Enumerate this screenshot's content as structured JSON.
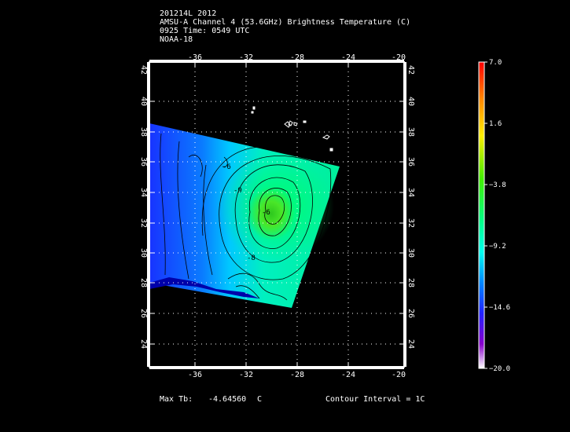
{
  "header": {
    "line1": "201214L 2012",
    "line2": "AMSU-A Channel 4 (53.6GHz) Brightness Temperature (C)",
    "line3": "0925 Time: 0549 UTC",
    "line4": "NOAA-18"
  },
  "map": {
    "lon_range": [
      -39,
      -20
    ],
    "lat_range": [
      22.5,
      42.5
    ],
    "lon_ticks": [
      "-36",
      "-32",
      "-28",
      "-24",
      "-20"
    ],
    "lat_ticks": [
      "24",
      "26",
      "28",
      "30",
      "32",
      "34",
      "36",
      "38",
      "40",
      "42"
    ],
    "contour_labels": [
      "-6",
      "-8",
      "-9",
      "-6"
    ],
    "land_color": "#ffffff",
    "grid_style": "dotted"
  },
  "colorbar": {
    "max": 7.0,
    "min": -20.0,
    "labels": [
      "7.0",
      "1.6",
      "−3.8",
      "−9.2",
      "−14.6",
      "−20.0"
    ]
  },
  "footer": {
    "max_tb_label": "Max Tb:",
    "max_tb_value": "-4.64560",
    "max_tb_unit": "C",
    "contour_interval": "Contour Interval = 1C"
  }
}
